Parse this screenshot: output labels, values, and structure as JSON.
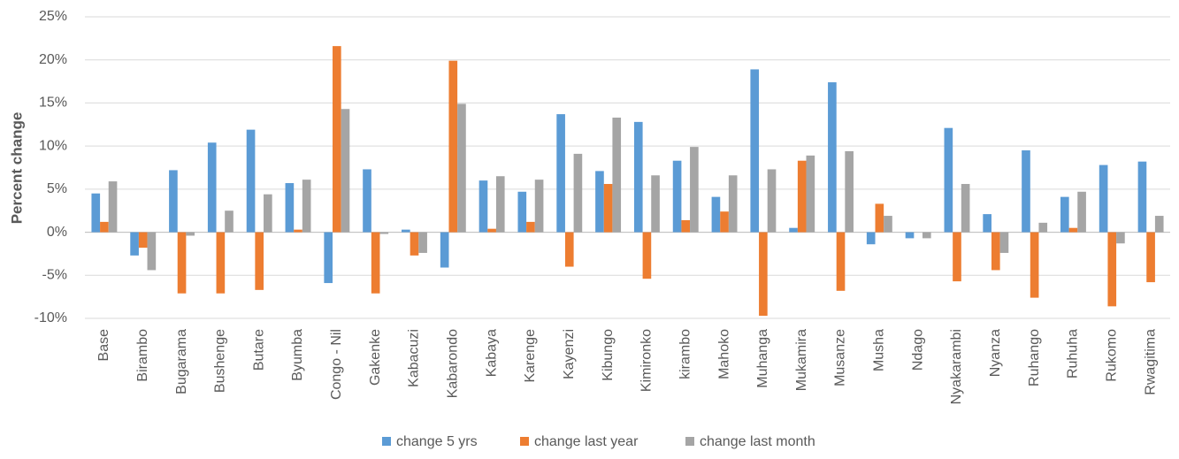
{
  "chart_data": {
    "type": "bar",
    "y_label": "Percent change",
    "categories": [
      "Base",
      "Birambo",
      "Bugarama",
      "Bushenge",
      "Butare",
      "Byumba",
      "Congo - Nil",
      "Gakenke",
      "Kabacuzi",
      "Kabarondo",
      "Kabaya",
      "Karenge",
      "Kayenzi",
      "Kibungo",
      "Kimironko",
      "kirambo",
      "Mahoko",
      "Muhanga",
      "Mukamira",
      "Musanze",
      "Musha",
      "Ndago",
      "Nyakarambi",
      "Nyanza",
      "Ruhango",
      "Ruhuha",
      "Rukomo",
      "Rwagitima"
    ],
    "series": [
      {
        "name": "change 5 yrs",
        "color": "#5b9bd5",
        "values": [
          4.5,
          -2.7,
          7.2,
          10.4,
          11.9,
          5.7,
          -5.9,
          7.3,
          0.3,
          -4.1,
          6.0,
          4.7,
          13.7,
          7.1,
          12.8,
          8.3,
          4.1,
          18.9,
          0.5,
          17.4,
          -1.4,
          -0.7,
          12.1,
          2.1,
          9.5,
          4.1,
          7.8,
          8.2
        ]
      },
      {
        "name": "change last year",
        "color": "#ed7d31",
        "values": [
          1.2,
          -1.8,
          -7.1,
          -7.1,
          -6.7,
          0.3,
          21.6,
          -7.1,
          -2.7,
          19.9,
          0.4,
          1.2,
          -4.0,
          5.6,
          -5.4,
          1.4,
          2.4,
          -9.7,
          8.3,
          -6.8,
          3.3,
          0,
          -5.7,
          -4.4,
          -7.6,
          0.5,
          -8.6,
          -5.8
        ]
      },
      {
        "name": "change last month",
        "color": "#a5a5a5",
        "values": [
          5.9,
          -4.4,
          -0.4,
          2.5,
          4.4,
          6.1,
          14.3,
          -0.2,
          -2.4,
          14.9,
          6.5,
          6.1,
          9.1,
          13.3,
          6.6,
          9.9,
          6.6,
          7.3,
          8.9,
          9.4,
          1.9,
          -0.7,
          5.6,
          -2.4,
          1.1,
          4.7,
          -1.3,
          1.9
        ]
      }
    ],
    "ylim": [
      -10,
      25
    ],
    "yticks": [
      {
        "value": -10,
        "label": "-10%"
      },
      {
        "value": -5,
        "label": "-5%"
      },
      {
        "value": 0,
        "label": "0%"
      },
      {
        "value": 5,
        "label": "5%"
      },
      {
        "value": 10,
        "label": "10%"
      },
      {
        "value": 15,
        "label": "15%"
      },
      {
        "value": 20,
        "label": "20%"
      },
      {
        "value": 25,
        "label": "25%"
      }
    ],
    "grid": true,
    "legend": "bottom"
  }
}
